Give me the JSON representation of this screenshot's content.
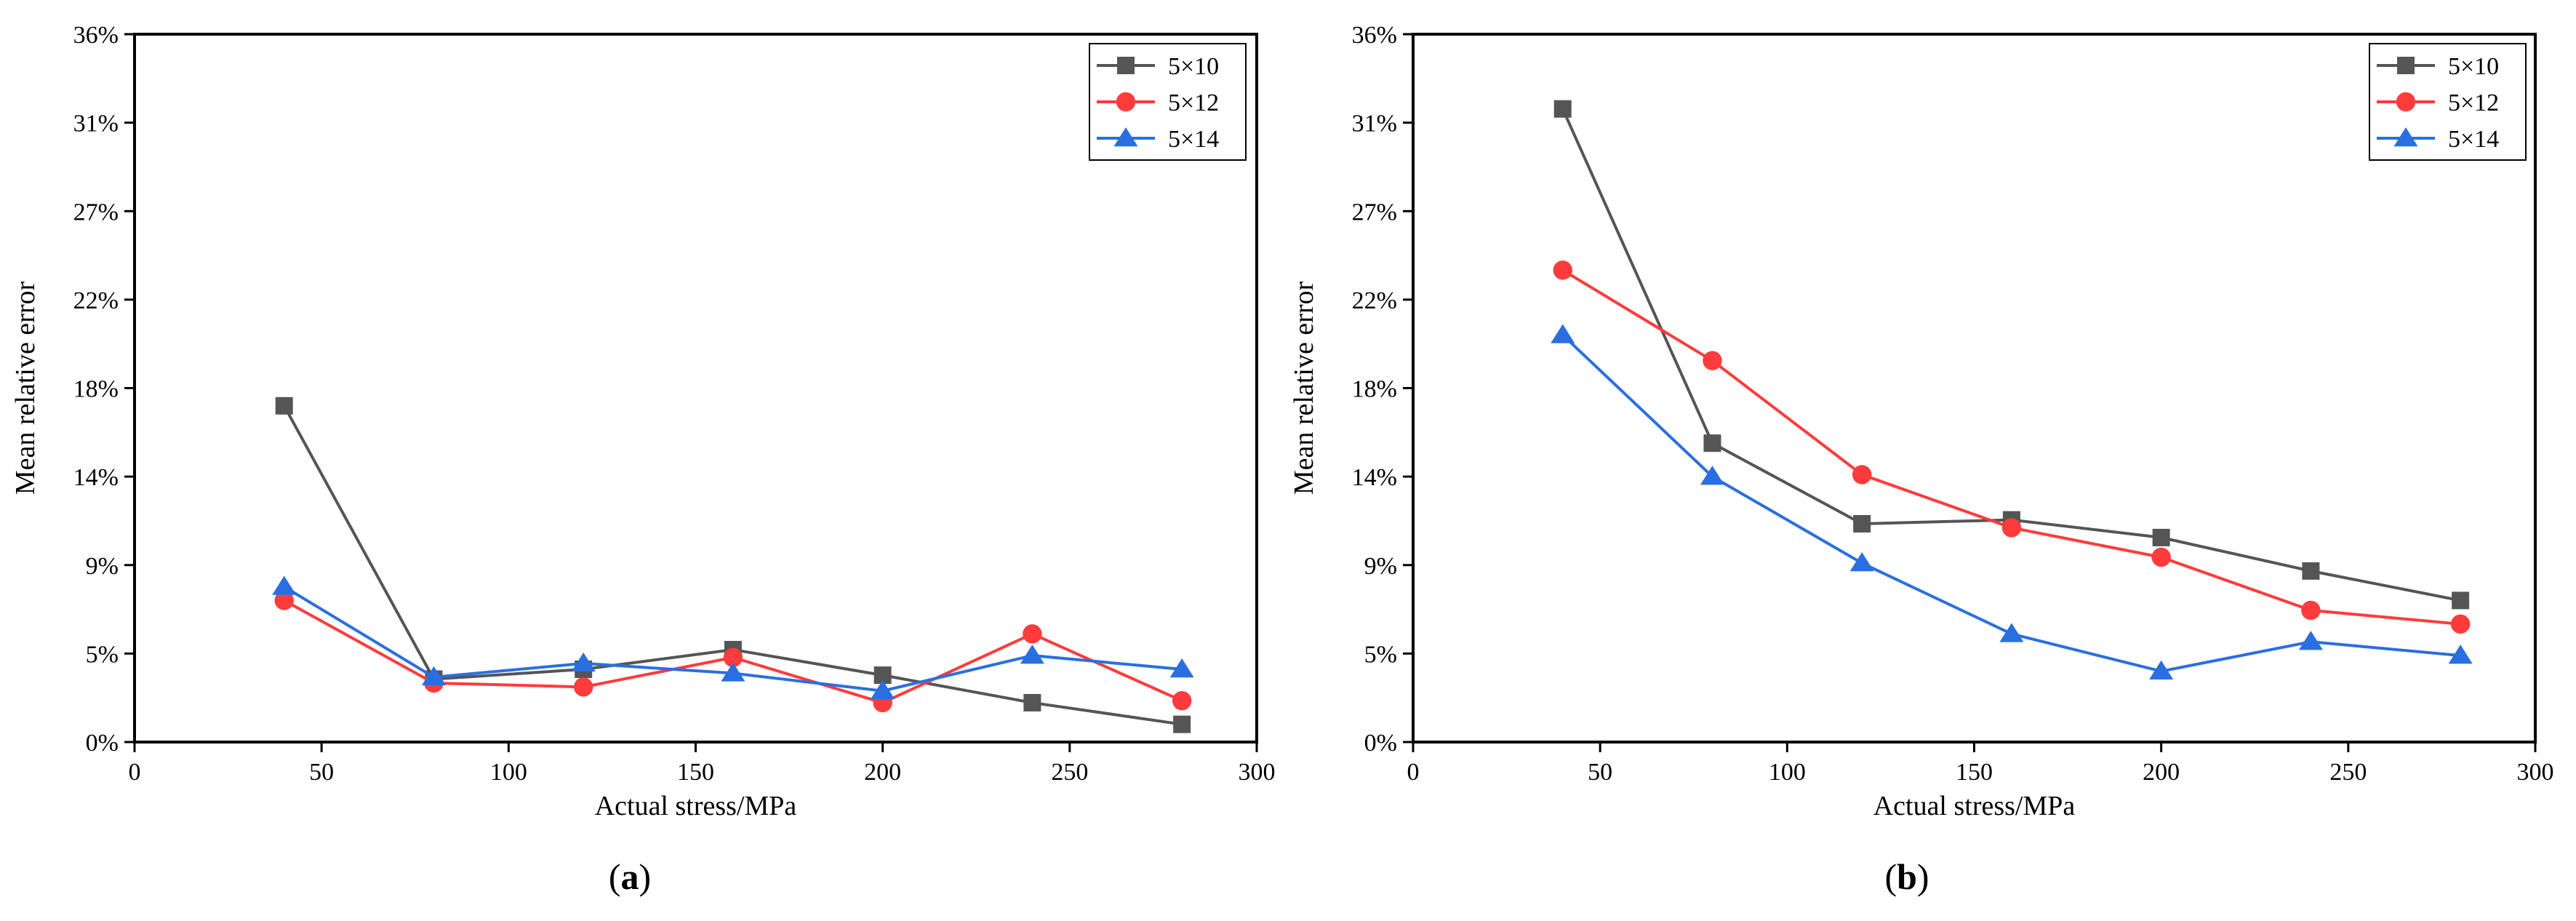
{
  "chart_data": [
    {
      "type": "line",
      "panel_label_open": "(",
      "panel_label_letter": "a",
      "panel_label_close": ")",
      "xlabel": "Actual stress/MPa",
      "ylabel": "Mean relative error",
      "xlim": [
        0,
        300
      ],
      "ylim": [
        0,
        36
      ],
      "xticks": [
        0,
        50,
        100,
        150,
        200,
        250,
        300
      ],
      "xtick_labels": [
        "0",
        "50",
        "100",
        "150",
        "200",
        "250",
        "300"
      ],
      "yticks": [
        0,
        4.5,
        9,
        13.5,
        18,
        22.5,
        27,
        31.5,
        36
      ],
      "ytick_labels": [
        "0%",
        "5%",
        "9%",
        "14%",
        "18%",
        "22%",
        "27%",
        "31%",
        "36%"
      ],
      "grid": false,
      "legend_position": "top-right",
      "x": [
        40,
        80,
        120,
        160,
        200,
        240,
        280
      ],
      "series": [
        {
          "name": "5×10",
          "color": "#555555",
          "marker": "square",
          "values": [
            17.1,
            3.2,
            3.7,
            4.7,
            3.4,
            2.0,
            0.9
          ]
        },
        {
          "name": "5×12",
          "color": "#ff3b3b",
          "marker": "circle",
          "values": [
            7.2,
            3.0,
            2.8,
            4.3,
            2.0,
            5.5,
            2.1
          ]
        },
        {
          "name": "5×14",
          "color": "#2a6fe0",
          "marker": "triangle",
          "values": [
            7.9,
            3.3,
            4.0,
            3.5,
            2.6,
            4.4,
            3.7
          ]
        }
      ]
    },
    {
      "type": "line",
      "panel_label_open": "(",
      "panel_label_letter": "b",
      "panel_label_close": ")",
      "xlabel": "Actual stress/MPa",
      "ylabel": "Mean relative error",
      "xlim": [
        0,
        300
      ],
      "ylim": [
        0,
        36
      ],
      "xticks": [
        0,
        50,
        100,
        150,
        200,
        250,
        300
      ],
      "xtick_labels": [
        "0",
        "50",
        "100",
        "150",
        "200",
        "250",
        "300"
      ],
      "yticks": [
        0,
        4.5,
        9,
        13.5,
        18,
        22.5,
        27,
        31.5,
        36
      ],
      "ytick_labels": [
        "0%",
        "5%",
        "9%",
        "14%",
        "18%",
        "22%",
        "27%",
        "31%",
        "36%"
      ],
      "grid": false,
      "legend_position": "top-right",
      "x": [
        40,
        80,
        120,
        160,
        200,
        240,
        280
      ],
      "series": [
        {
          "name": "5×10",
          "color": "#555555",
          "marker": "square",
          "values": [
            32.2,
            15.2,
            11.1,
            11.3,
            10.4,
            8.7,
            7.2
          ]
        },
        {
          "name": "5×12",
          "color": "#ff3b3b",
          "marker": "circle",
          "values": [
            24.0,
            19.4,
            13.6,
            10.9,
            9.4,
            6.7,
            6.0
          ]
        },
        {
          "name": "5×14",
          "color": "#2a6fe0",
          "marker": "triangle",
          "values": [
            20.7,
            13.5,
            9.1,
            5.5,
            3.6,
            5.1,
            4.4
          ]
        }
      ]
    }
  ]
}
